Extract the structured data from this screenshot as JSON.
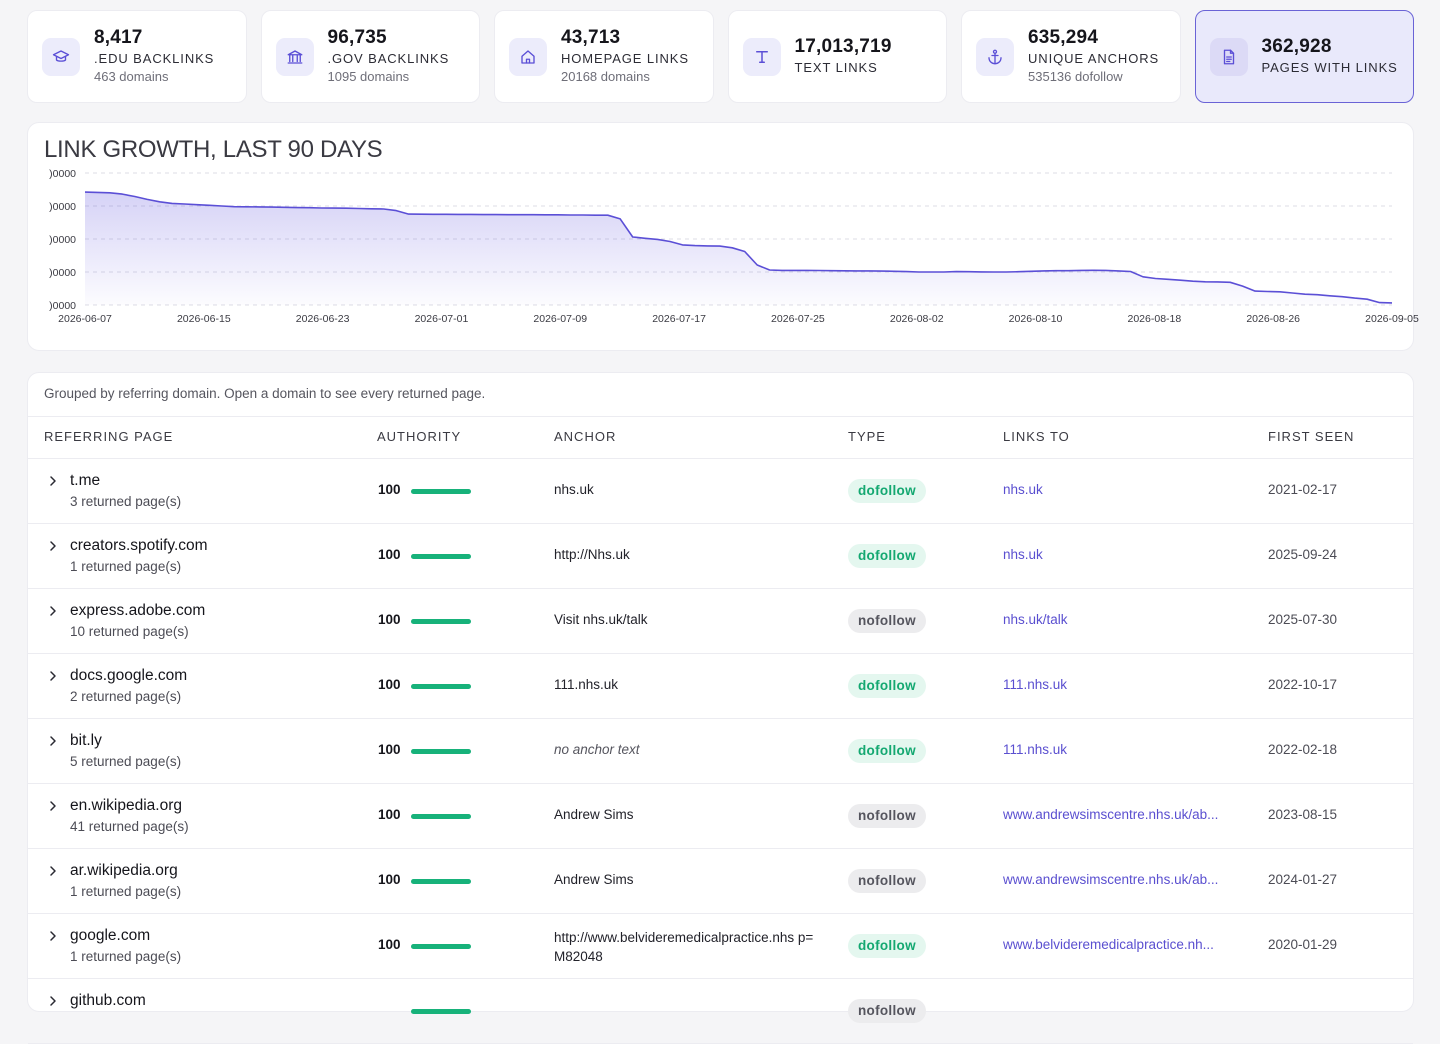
{
  "stats": [
    {
      "value": "8,417",
      "label": ".EDU BACKLINKS",
      "sub": "463 domains",
      "icon": "graduation-cap-icon"
    },
    {
      "value": "96,735",
      "label": ".GOV BACKLINKS",
      "sub": "1095 domains",
      "icon": "government-building-icon"
    },
    {
      "value": "43,713",
      "label": "HOMEPAGE LINKS",
      "sub": "20168 domains",
      "icon": "home-icon"
    },
    {
      "value": "17,013,719",
      "label": "TEXT LINKS",
      "sub": "",
      "icon": "text-icon"
    },
    {
      "value": "635,294",
      "label": "UNIQUE ANCHORS",
      "sub": "535136 dofollow",
      "icon": "anchor-icon"
    },
    {
      "value": "362,928",
      "label": "PAGES WITH LINKS",
      "sub": "",
      "icon": "document-icon"
    }
  ],
  "colors": {
    "accent": "#5b4fd6",
    "dofollow": "#14a871",
    "nofollow": "#55555e",
    "authority_bar": "#17b27a"
  },
  "chart_data": {
    "type": "area",
    "title": "LINK GROWTH, LAST 90 DAYS",
    "x_tick_labels": [
      "2026-06-07",
      "2026-06-15",
      "2026-06-23",
      "2026-07-01",
      "2026-07-09",
      "2026-07-17",
      "2026-07-25",
      "2026-08-02",
      "2026-08-10",
      "2026-08-18",
      "2026-08-26",
      "2026-09-05"
    ],
    "y_tick_labels": [
      ")0000",
      ")0000",
      ")0000",
      ")0000",
      ")0000"
    ],
    "grid": true,
    "series": [
      {
        "values": [
          0.855,
          0.853,
          0.85,
          0.84,
          0.822,
          0.8,
          0.782,
          0.77,
          0.765,
          0.76,
          0.755,
          0.75,
          0.745,
          0.744,
          0.743,
          0.742,
          0.74,
          0.738,
          0.737,
          0.735,
          0.734,
          0.733,
          0.731,
          0.729,
          0.727,
          0.715,
          0.689,
          0.688,
          0.687,
          0.687,
          0.686,
          0.686,
          0.685,
          0.685,
          0.684,
          0.684,
          0.684,
          0.683,
          0.683,
          0.682,
          0.682,
          0.68,
          0.68,
          0.652,
          0.515,
          0.505,
          0.497,
          0.481,
          0.455,
          0.45,
          0.448,
          0.446,
          0.433,
          0.405,
          0.303,
          0.265,
          0.262,
          0.262,
          0.262,
          0.261,
          0.26,
          0.259,
          0.258,
          0.258,
          0.257,
          0.255,
          0.253,
          0.25,
          0.25,
          0.25,
          0.253,
          0.252,
          0.251,
          0.25,
          0.25,
          0.252,
          0.255,
          0.258,
          0.26,
          0.26,
          0.262,
          0.263,
          0.262,
          0.258,
          0.254,
          0.214,
          0.201,
          0.195,
          0.188,
          0.18,
          0.176,
          0.175,
          0.172,
          0.143,
          0.105,
          0.102,
          0.1,
          0.091,
          0.082,
          0.078,
          0.07,
          0.063,
          0.052,
          0.044,
          0.018,
          0.016
        ]
      }
    ]
  },
  "table": {
    "note": "Grouped by referring domain. Open a domain to see every returned page.",
    "headers": {
      "referring": "REFERRING PAGE",
      "authority": "AUTHORITY",
      "anchor": "ANCHOR",
      "type": "TYPE",
      "links_to": "LINKS TO",
      "first_seen": "FIRST SEEN"
    },
    "rows": [
      {
        "domain": "t.me",
        "returned": "3 returned page(s)",
        "authority": "100",
        "authority_fraction": 1.0,
        "anchor": "nhs.uk",
        "anchor_style": "",
        "type": "dofollow",
        "links_to": "nhs.uk",
        "first_seen": "2021-02-17"
      },
      {
        "domain": "creators.spotify.com",
        "returned": "1 returned page(s)",
        "authority": "100",
        "authority_fraction": 1.0,
        "anchor": "http://Nhs.uk",
        "anchor_style": "",
        "type": "dofollow",
        "links_to": "nhs.uk",
        "first_seen": "2025-09-24"
      },
      {
        "domain": "express.adobe.com",
        "returned": "10 returned page(s)",
        "authority": "100",
        "authority_fraction": 1.0,
        "anchor": "Visit nhs.uk/talk",
        "anchor_style": "",
        "type": "nofollow",
        "links_to": "nhs.uk/talk",
        "first_seen": "2025-07-30"
      },
      {
        "domain": "docs.google.com",
        "returned": "2 returned page(s)",
        "authority": "100",
        "authority_fraction": 1.0,
        "anchor": "111.nhs.uk",
        "anchor_style": "",
        "type": "dofollow",
        "links_to": "111.nhs.uk",
        "first_seen": "2022-10-17"
      },
      {
        "domain": "bit.ly",
        "returned": "5 returned page(s)",
        "authority": "100",
        "authority_fraction": 1.0,
        "anchor": "no anchor text",
        "anchor_style": "empty",
        "type": "dofollow",
        "links_to": "111.nhs.uk",
        "first_seen": "2022-02-18"
      },
      {
        "domain": "en.wikipedia.org",
        "returned": "41 returned page(s)",
        "authority": "100",
        "authority_fraction": 1.0,
        "anchor": "Andrew Sims",
        "anchor_style": "",
        "type": "nofollow",
        "links_to": "www.andrewsimscentre.nhs.uk/ab...",
        "first_seen": "2023-08-15"
      },
      {
        "domain": "ar.wikipedia.org",
        "returned": "1 returned page(s)",
        "authority": "100",
        "authority_fraction": 1.0,
        "anchor": "Andrew Sims",
        "anchor_style": "",
        "type": "nofollow",
        "links_to": "www.andrewsimscentre.nhs.uk/ab...",
        "first_seen": "2024-01-27"
      },
      {
        "domain": "google.com",
        "returned": "1 returned page(s)",
        "authority": "100",
        "authority_fraction": 1.0,
        "anchor": "http://www.belvideremedicalpractice.nhs p=M82048",
        "anchor_style": "multi",
        "type": "dofollow",
        "links_to": "www.belvideremedicalpractice.nh...",
        "first_seen": "2020-01-29"
      },
      {
        "domain": "github.com",
        "returned": "",
        "authority": "",
        "authority_fraction": 1.0,
        "anchor": "",
        "anchor_style": "",
        "type": "nofollow",
        "links_to": "",
        "first_seen": ""
      }
    ]
  }
}
